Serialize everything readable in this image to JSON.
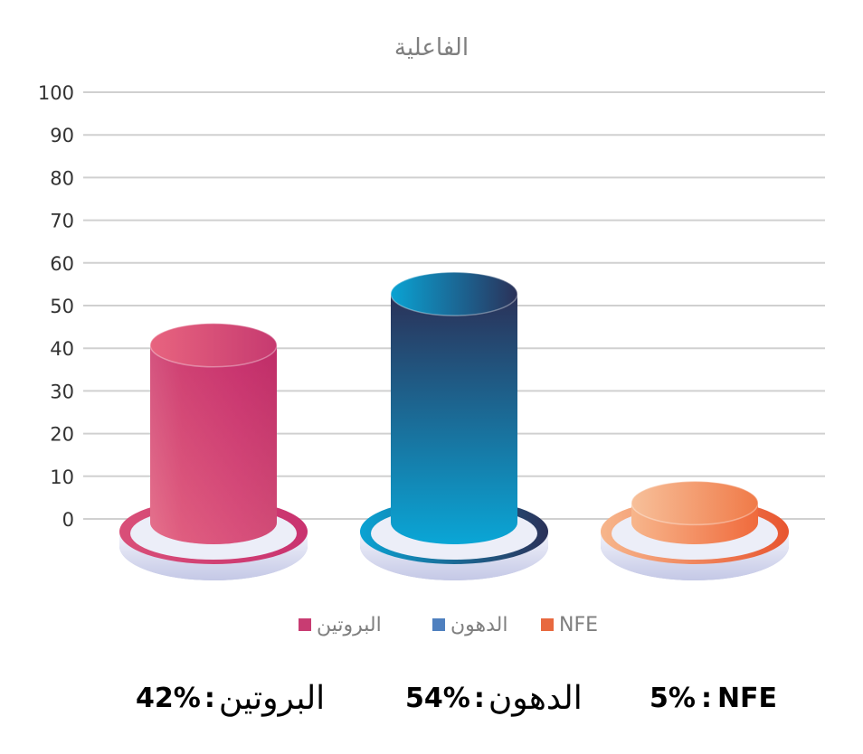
{
  "chart_data": {
    "type": "bar",
    "style": "3d-cylinder",
    "title": "الفاعلية",
    "categories": [
      "البروتين",
      "الدهون",
      "NFE"
    ],
    "values": [
      42,
      54,
      5
    ],
    "ylim": [
      0,
      100
    ],
    "yticks": [
      0,
      10,
      20,
      30,
      40,
      50,
      60,
      70,
      80,
      90,
      100
    ],
    "grid": true,
    "legend_position": "bottom",
    "series": [
      {
        "name": "البروتين",
        "value": 42,
        "color": "#c9326f",
        "light": "#e8647f",
        "swatch": "#c83c72"
      },
      {
        "name": "الدهون",
        "value": 54,
        "color": "#1aa3d1",
        "dark": "#2b3158",
        "swatch": "#4f80bf"
      },
      {
        "name": "NFE",
        "value": 5,
        "color": "#f06a3c",
        "light": "#f7b68c",
        "swatch": "#e8693f"
      }
    ]
  },
  "summary": [
    {
      "label": "البروتين",
      "sep": ":",
      "value": "42%"
    },
    {
      "label": "الدهون",
      "sep": ":",
      "value": "54%"
    },
    {
      "label": "NFE",
      "sep": ":",
      "value": "5%"
    }
  ],
  "colors": {
    "grid": "#d0d0d0",
    "axis_text": "#333333",
    "title": "#7f7f7f",
    "pedestal": "#e3e5f4",
    "pedestal_shadow": "#b9bde0"
  }
}
